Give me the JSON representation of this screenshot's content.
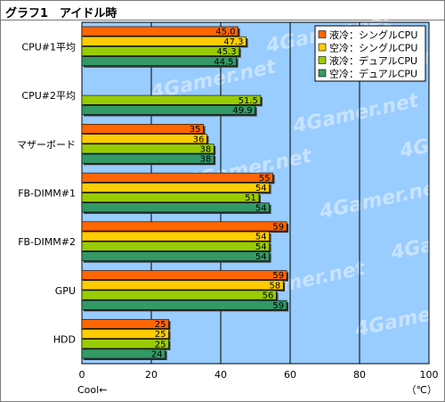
{
  "chart_data": {
    "type": "bar",
    "orientation": "horizontal",
    "title": "グラフ1　アイドル時",
    "categories": [
      "CPU#1平均",
      "CPU#2平均",
      "マザーボード",
      "FB-DIMM#1",
      "FB-DIMM#2",
      "GPU",
      "HDD"
    ],
    "series": [
      {
        "name": "液冷：シングルCPU",
        "color": "#ff6600",
        "values": [
          45.0,
          null,
          35,
          55,
          59,
          59,
          25
        ],
        "labels": [
          "45.0",
          "",
          "35",
          "55",
          "59",
          "59",
          "25"
        ]
      },
      {
        "name": "空冷：シングルCPU",
        "color": "#ffcc00",
        "values": [
          47.3,
          null,
          36,
          54,
          54,
          58,
          25
        ],
        "labels": [
          "47.3",
          "",
          "36",
          "54",
          "54",
          "58",
          "25"
        ]
      },
      {
        "name": "液冷：デュアルCPU",
        "color": "#99cc00",
        "values": [
          45.3,
          51.5,
          38,
          51,
          54,
          56,
          25
        ],
        "labels": [
          "45.3",
          "51.5",
          "38",
          "51",
          "54",
          "56",
          "25"
        ]
      },
      {
        "name": "空冷：デュアルCPU",
        "color": "#339966",
        "values": [
          44.5,
          49.9,
          38,
          54,
          54,
          59,
          24
        ],
        "labels": [
          "44.5",
          "49.9",
          "38",
          "54",
          "54",
          "59",
          "24"
        ]
      }
    ],
    "xlim": [
      0,
      100
    ],
    "xticks": [
      0,
      20,
      40,
      60,
      80,
      100
    ],
    "xlabel_left": "Cool←",
    "xlabel_right": "（℃）",
    "legend_position": "top-right",
    "watermark": "4Gamer.net",
    "grid": true,
    "plot_background": "#99ccff"
  }
}
